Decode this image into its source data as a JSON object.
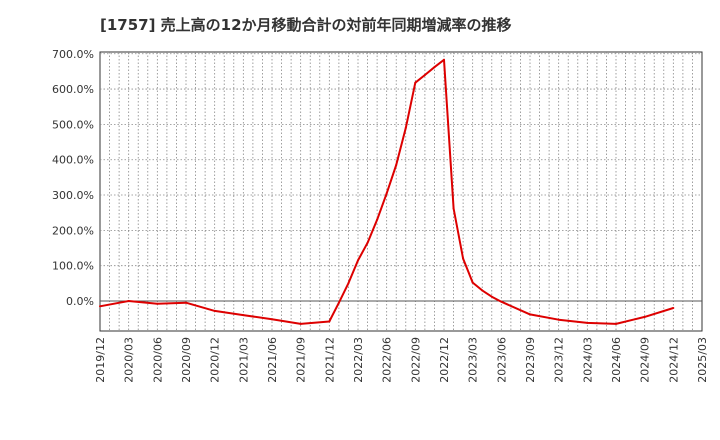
{
  "chart_data": {
    "type": "line",
    "title": "[1757]  売上高の12か月移動合計の対前年同期増減率の推移",
    "xlabel": "",
    "ylabel": "",
    "ylim": [
      -85,
      705
    ],
    "yticks": [
      "0.0%",
      "100.0%",
      "200.0%",
      "300.0%",
      "400.0%",
      "500.0%",
      "600.0%",
      "700.0%"
    ],
    "ytick_values": [
      0,
      100,
      200,
      300,
      400,
      500,
      600,
      700
    ],
    "xticks": [
      "2019/12",
      "2020/03",
      "2020/06",
      "2020/09",
      "2020/12",
      "2021/03",
      "2021/06",
      "2021/09",
      "2021/12",
      "2022/03",
      "2022/06",
      "2022/09",
      "2022/12",
      "2023/03",
      "2023/06",
      "2023/09",
      "2023/12",
      "2024/03",
      "2024/06",
      "2024/09",
      "2024/12",
      "2025/03"
    ],
    "x_index_range": [
      0,
      63
    ],
    "grid": true,
    "series": [
      {
        "name": "増減率",
        "color": "#dd0000",
        "points": [
          [
            0,
            -15
          ],
          [
            3,
            0
          ],
          [
            6,
            -8
          ],
          [
            9,
            -5
          ],
          [
            12,
            -28
          ],
          [
            15,
            -40
          ],
          [
            18,
            -52
          ],
          [
            21,
            -65
          ],
          [
            24,
            -58
          ],
          [
            25,
            -5
          ],
          [
            26,
            50
          ],
          [
            27,
            115
          ],
          [
            28,
            165
          ],
          [
            29,
            230
          ],
          [
            30,
            305
          ],
          [
            31,
            385
          ],
          [
            32,
            490
          ],
          [
            33,
            618
          ],
          [
            34,
            640
          ],
          [
            35,
            662
          ],
          [
            36,
            683
          ],
          [
            37,
            262
          ],
          [
            38,
            120
          ],
          [
            39,
            52
          ],
          [
            40,
            30
          ],
          [
            41,
            12
          ],
          [
            42,
            -2
          ],
          [
            45,
            -38
          ],
          [
            48,
            -53
          ],
          [
            51,
            -62
          ],
          [
            54,
            -65
          ],
          [
            57,
            -45
          ],
          [
            60,
            -20
          ]
        ]
      }
    ]
  }
}
